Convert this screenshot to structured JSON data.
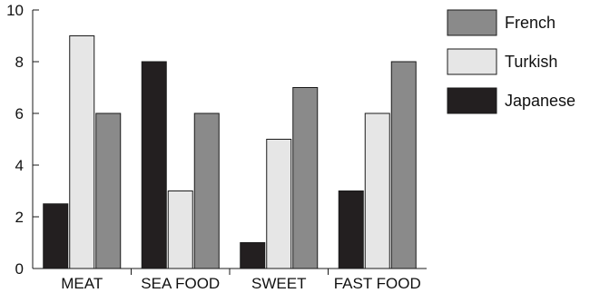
{
  "chart_data": {
    "type": "bar",
    "categories": [
      "MEAT",
      "SEA FOOD",
      "SWEET",
      "FAST FOOD"
    ],
    "series": [
      {
        "name": "Japanese",
        "values": [
          2.5,
          8,
          1,
          3
        ],
        "color": "#231f20"
      },
      {
        "name": "Turkish",
        "values": [
          9,
          3,
          5,
          6
        ],
        "color": "#e6e6e6"
      },
      {
        "name": "French",
        "values": [
          6,
          6,
          7,
          8
        ],
        "color": "#8a8a8a"
      }
    ],
    "legend_order": [
      "French",
      "Turkish",
      "Japanese"
    ],
    "legend_position": "right",
    "ylim": [
      0,
      10
    ],
    "yticks": [
      "0",
      "2",
      "4",
      "6",
      "8",
      "10"
    ],
    "title": "",
    "xlabel": "",
    "ylabel": "",
    "grid": false
  }
}
